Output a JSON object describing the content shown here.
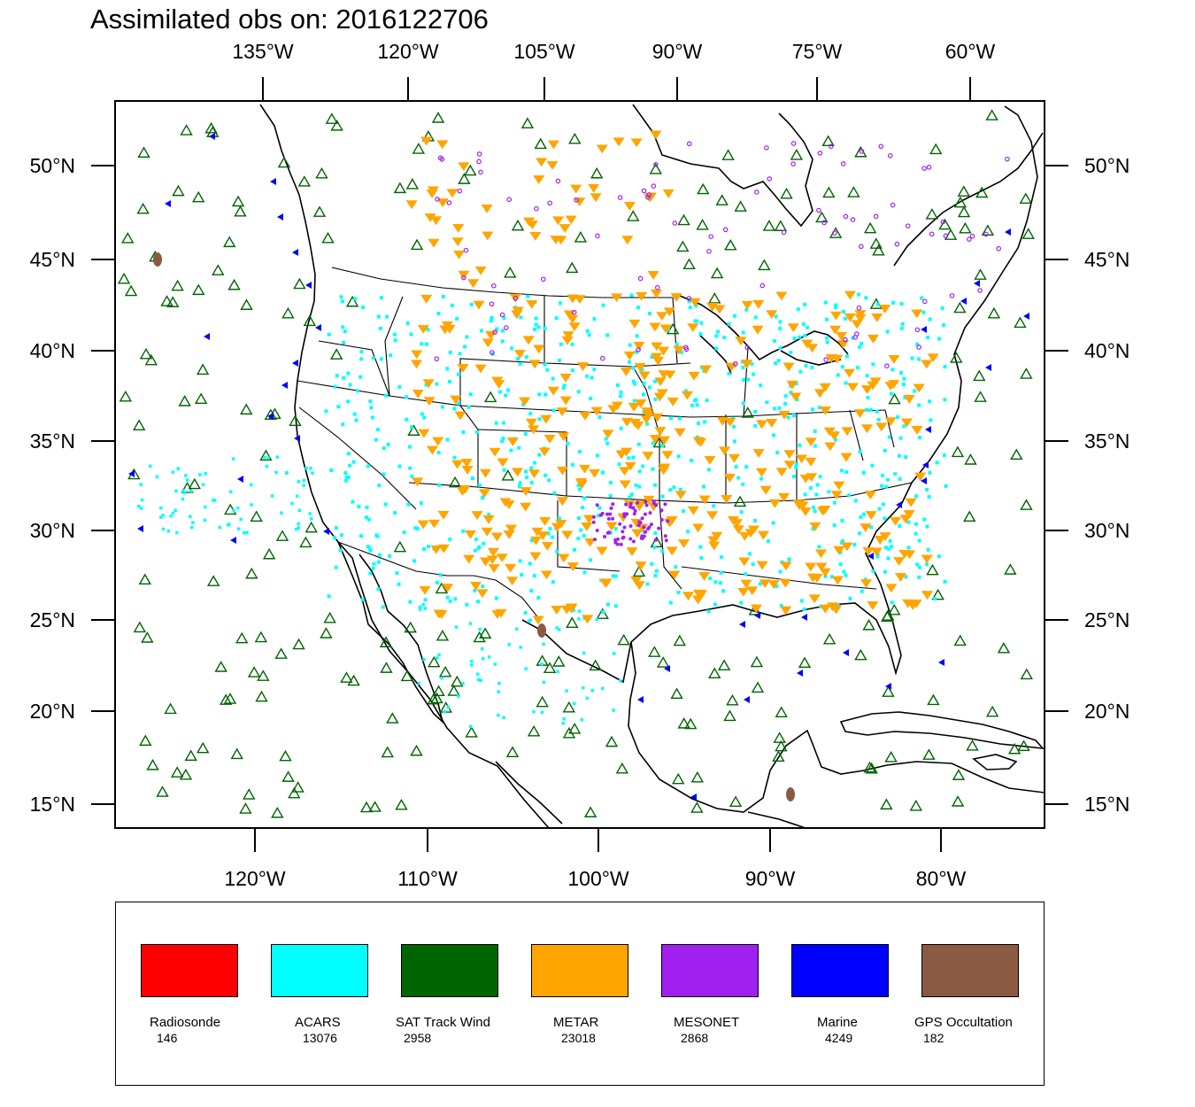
{
  "title": "Assimilated obs on: 2016122706",
  "top_axis": {
    "labels": [
      "135°W",
      "120°W",
      "105°W",
      "90°W",
      "75°W",
      "60°W"
    ]
  },
  "bottom_axis": {
    "labels": [
      "120°W",
      "110°W",
      "100°W",
      "90°W",
      "80°W"
    ]
  },
  "left_axis": {
    "labels": [
      "50°N",
      "45°N",
      "40°N",
      "35°N",
      "30°N",
      "25°N",
      "20°N",
      "15°N"
    ]
  },
  "right_axis": {
    "labels": [
      "50°N",
      "45°N",
      "40°N",
      "35°N",
      "30°N",
      "25°N",
      "20°N",
      "15°N"
    ]
  },
  "legend": [
    {
      "label": "Radiosonde",
      "count": "146",
      "color": "#ff0000"
    },
    {
      "label": "ACARS",
      "count": "13076",
      "color": "#00ffff"
    },
    {
      "label": "SAT Track Wind",
      "count": "2958",
      "color": "#006400"
    },
    {
      "label": "METAR",
      "count": "23018",
      "color": "#ffa500"
    },
    {
      "label": "MESONET",
      "count": "2868",
      "color": "#a020f0"
    },
    {
      "label": "Marine",
      "count": "4249",
      "color": "#0000ff"
    },
    {
      "label": "GPS Occultation",
      "count": "182",
      "color": "#8b5a42"
    }
  ],
  "map_colors": {
    "coastline": "#000000",
    "acars": "#00ffff",
    "sat_track_wind": "#006400",
    "metar": "#ffa500",
    "mesonet": "#a020f0",
    "marine": "#0000ff",
    "gps": "#8b5a42"
  }
}
